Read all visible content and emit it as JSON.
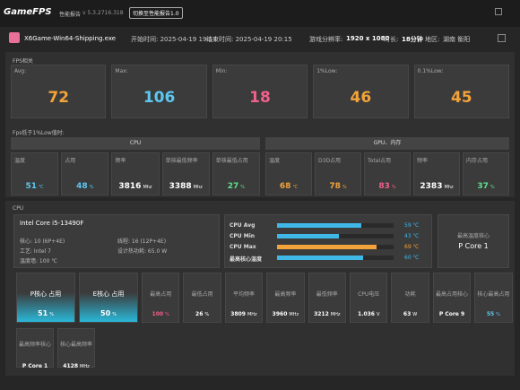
{
  "header": {
    "logo": "GameFPS",
    "title": "性能报告",
    "version": "v 5.3.2716.318",
    "badge": "切换至性能报告1.0"
  },
  "info": {
    "app": "X6Game-Win64-Shipping.exe",
    "start": "开始时间: 2025-04-19 19:57",
    "end": "结束时间: 2025-04-19 20:15",
    "resolution_label": "游戏分辨率:",
    "resolution": "1920 x 1080",
    "duration_label": "时长:",
    "duration": "18分钟",
    "region_label": "地区:",
    "region": "湖南 衡阳"
  },
  "fps": {
    "title": "FPS相关",
    "cards": [
      {
        "label": "Avg:",
        "value": "72",
        "color": "#f2a33a"
      },
      {
        "label": "Max:",
        "value": "106",
        "color": "#5cc8f0"
      },
      {
        "label": "Min:",
        "value": "18",
        "color": "#f0608a"
      },
      {
        "label": "1%Low:",
        "value": "46",
        "color": "#f2a33a"
      },
      {
        "label": "0.1%Low:",
        "value": "45",
        "color": "#f2a33a"
      }
    ]
  },
  "low": {
    "title": "Fps低于1%Low值时:",
    "groups": [
      {
        "title": "CPU",
        "cards": [
          {
            "label": "温度",
            "value": "51",
            "unit": "℃",
            "color": "#5cc8f0"
          },
          {
            "label": "占用",
            "value": "48",
            "unit": "%",
            "color": "#5cc8f0"
          },
          {
            "label": "频率",
            "value": "3816",
            "unit": "Mhz",
            "color": "#ffffff"
          },
          {
            "label": "单核最低频率",
            "value": "3388",
            "unit": "Mhz",
            "color": "#ffffff"
          },
          {
            "label": "单核最低占用",
            "value": "27",
            "unit": "%",
            "color": "#5ee08a"
          }
        ]
      },
      {
        "title": "GPU、内存",
        "cards": [
          {
            "label": "温度",
            "value": "68",
            "unit": "℃",
            "color": "#f2a33a"
          },
          {
            "label": "D3D占用",
            "value": "78",
            "unit": "%",
            "color": "#f2a33a"
          },
          {
            "label": "Total占用",
            "value": "83",
            "unit": "%",
            "color": "#f0608a"
          },
          {
            "label": "频率",
            "value": "2383",
            "unit": "Mhz",
            "color": "#ffffff"
          },
          {
            "label": "内存占用",
            "value": "37",
            "unit": "%",
            "color": "#5ee08a"
          }
        ]
      }
    ]
  },
  "cpu": {
    "title": "CPU",
    "model": "Intel Core i5-13490F",
    "specs": [
      "核心: 10 (6P+4E)",
      "线程: 16 (12P+4E)",
      "工艺: Intel 7",
      "设计热功耗: 65.0 W",
      "温度墙: 100 ℃"
    ],
    "temps": [
      {
        "label": "CPU Avg",
        "value": 59,
        "unit": "℃",
        "color": "#3fb8e8"
      },
      {
        "label": "CPU Min",
        "value": 43,
        "unit": "℃",
        "color": "#3fb8e8"
      },
      {
        "label": "CPU Max",
        "value": 69,
        "unit": "℃",
        "color": "#f2a33a"
      },
      {
        "label": "最高核心温度",
        "value": 60,
        "unit": "℃",
        "color": "#3fb8e8"
      }
    ],
    "hot_core": {
      "label": "最高温度核心",
      "value": "P Core 1"
    },
    "cards": [
      {
        "label": "P核心 占用",
        "value": "51",
        "unit": "%",
        "color": "#ffffff"
      },
      {
        "label": "E核心 占用",
        "value": "50",
        "unit": "%",
        "color": "#ffffff"
      },
      {
        "label": "最高占用",
        "value": "100",
        "unit": "%",
        "color": "#f0608a"
      },
      {
        "label": "最低占用",
        "value": "26",
        "unit": "%",
        "color": "#ffffff"
      },
      {
        "label": "平均频率",
        "value": "3809",
        "unit": "MHz",
        "color": "#ffffff"
      },
      {
        "label": "最高频率",
        "value": "3960",
        "unit": "MHz",
        "color": "#ffffff"
      },
      {
        "label": "最低频率",
        "value": "3212",
        "unit": "MHz",
        "color": "#ffffff"
      },
      {
        "label": "CPU电压",
        "value": "1.036",
        "unit": "V",
        "color": "#ffffff"
      },
      {
        "label": "功耗",
        "value": "63",
        "unit": "W",
        "color": "#ffffff"
      },
      {
        "label": "最高占用核心",
        "value": "P Core 9",
        "color": "#ffffff"
      },
      {
        "label": "核心最高占用",
        "value": "55",
        "unit": "%",
        "color": "#5cc8f0"
      },
      {
        "label": "最高频率核心",
        "value": "P Core 1",
        "color": "#ffffff"
      },
      {
        "label": "核心最高频率",
        "value": "4128",
        "unit": "MHz",
        "color": "#ffffff"
      }
    ]
  }
}
